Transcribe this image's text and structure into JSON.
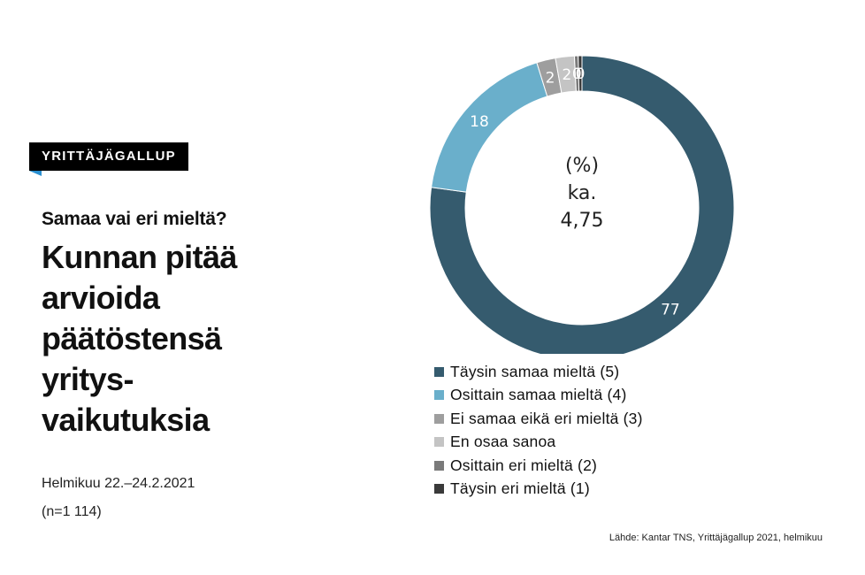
{
  "badge": "YRITTÄJÄGALLUP",
  "kicker": "Samaa vai eri mieltä?",
  "headline": [
    "Kunnan pitää",
    "arvioida",
    "päätöstensä",
    "yritys-",
    "vaikutuksia"
  ],
  "date": "Helmikuu 22.–24.2.2021",
  "sample": "(n=1 114)",
  "source": "Lähde: Kantar TNS, Yrittäjägallup 2021, helmikuu",
  "chart_data": {
    "type": "pie",
    "donut": true,
    "center": [
      "(%)",
      "ka.",
      "4,75"
    ],
    "legend_position": "bottom",
    "categories": [
      "Täysin samaa mieltä (5)",
      "Osittain samaa mieltä (4)",
      "Ei samaa eikä eri mieltä (3)",
      "En osaa sanoa",
      "Osittain eri mieltä (2)",
      "Täysin eri mieltä (1)"
    ],
    "values": [
      77,
      18,
      2,
      2,
      0,
      0
    ],
    "labels": [
      "77",
      "18",
      "2",
      "2",
      "0",
      "0"
    ],
    "label_colors": [
      "#ffffff",
      "#ffffff",
      "#ffffff",
      "#ffffff",
      "#ffffff",
      "#ffffff"
    ],
    "colors": [
      "#355b6e",
      "#6aafcb",
      "#9e9e9e",
      "#c4c4c4",
      "#7a7a7a",
      "#3a3a3a"
    ]
  }
}
